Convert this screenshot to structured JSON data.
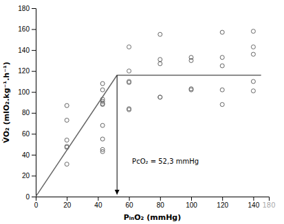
{
  "chart_data": {
    "type": "scatter",
    "x_label": "PᵢₙO₂ (mmHg)",
    "y_label": "V̇O₂ (mlO₂.kg⁻¹.h⁻¹)",
    "series": [
      {
        "type": "scatter",
        "color": "#666666",
        "marker": "circle",
        "x": [
          20,
          20,
          20,
          20,
          20,
          20,
          43,
          43,
          43,
          43,
          43,
          43,
          43,
          43,
          43,
          43,
          60,
          60,
          60,
          60,
          60,
          60,
          80,
          80,
          80,
          80,
          80,
          100,
          100,
          100,
          100,
          120,
          120,
          120,
          120,
          120,
          140,
          140,
          140,
          140,
          140
        ],
        "values": [
          87,
          73,
          54,
          48,
          47,
          31,
          108,
          102,
          93,
          91,
          89,
          88,
          68,
          55,
          45,
          43,
          143,
          120,
          110,
          109,
          84,
          83,
          155,
          131,
          127,
          95,
          95,
          133,
          130,
          103,
          102,
          157,
          133,
          125,
          102,
          88,
          158,
          143,
          136,
          110,
          101
        ]
      },
      {
        "type": "line",
        "color": "#666666",
        "x": [
          0,
          52.3
        ],
        "values": [
          0,
          116
        ]
      },
      {
        "type": "line",
        "color": "#666666",
        "x": [
          52.3,
          145
        ],
        "values": [
          116,
          116
        ]
      }
    ],
    "arrow": {
      "x": 52.3,
      "y_start": 116,
      "y_end": 2
    },
    "annotations": [
      {
        "text": "PcO₂ = 52,3 mmHg",
        "x": 62,
        "y": 30
      },
      {
        "text": "180",
        "x": 150,
        "color": "#aaaaaa"
      }
    ],
    "xlim": [
      0,
      150
    ],
    "ylim": [
      0,
      180
    ],
    "xticks": [
      0,
      20,
      40,
      60,
      80,
      100,
      120,
      140
    ],
    "yticks": [
      0,
      20,
      40,
      60,
      80,
      100,
      120,
      140,
      160,
      180
    ],
    "grid": false
  }
}
